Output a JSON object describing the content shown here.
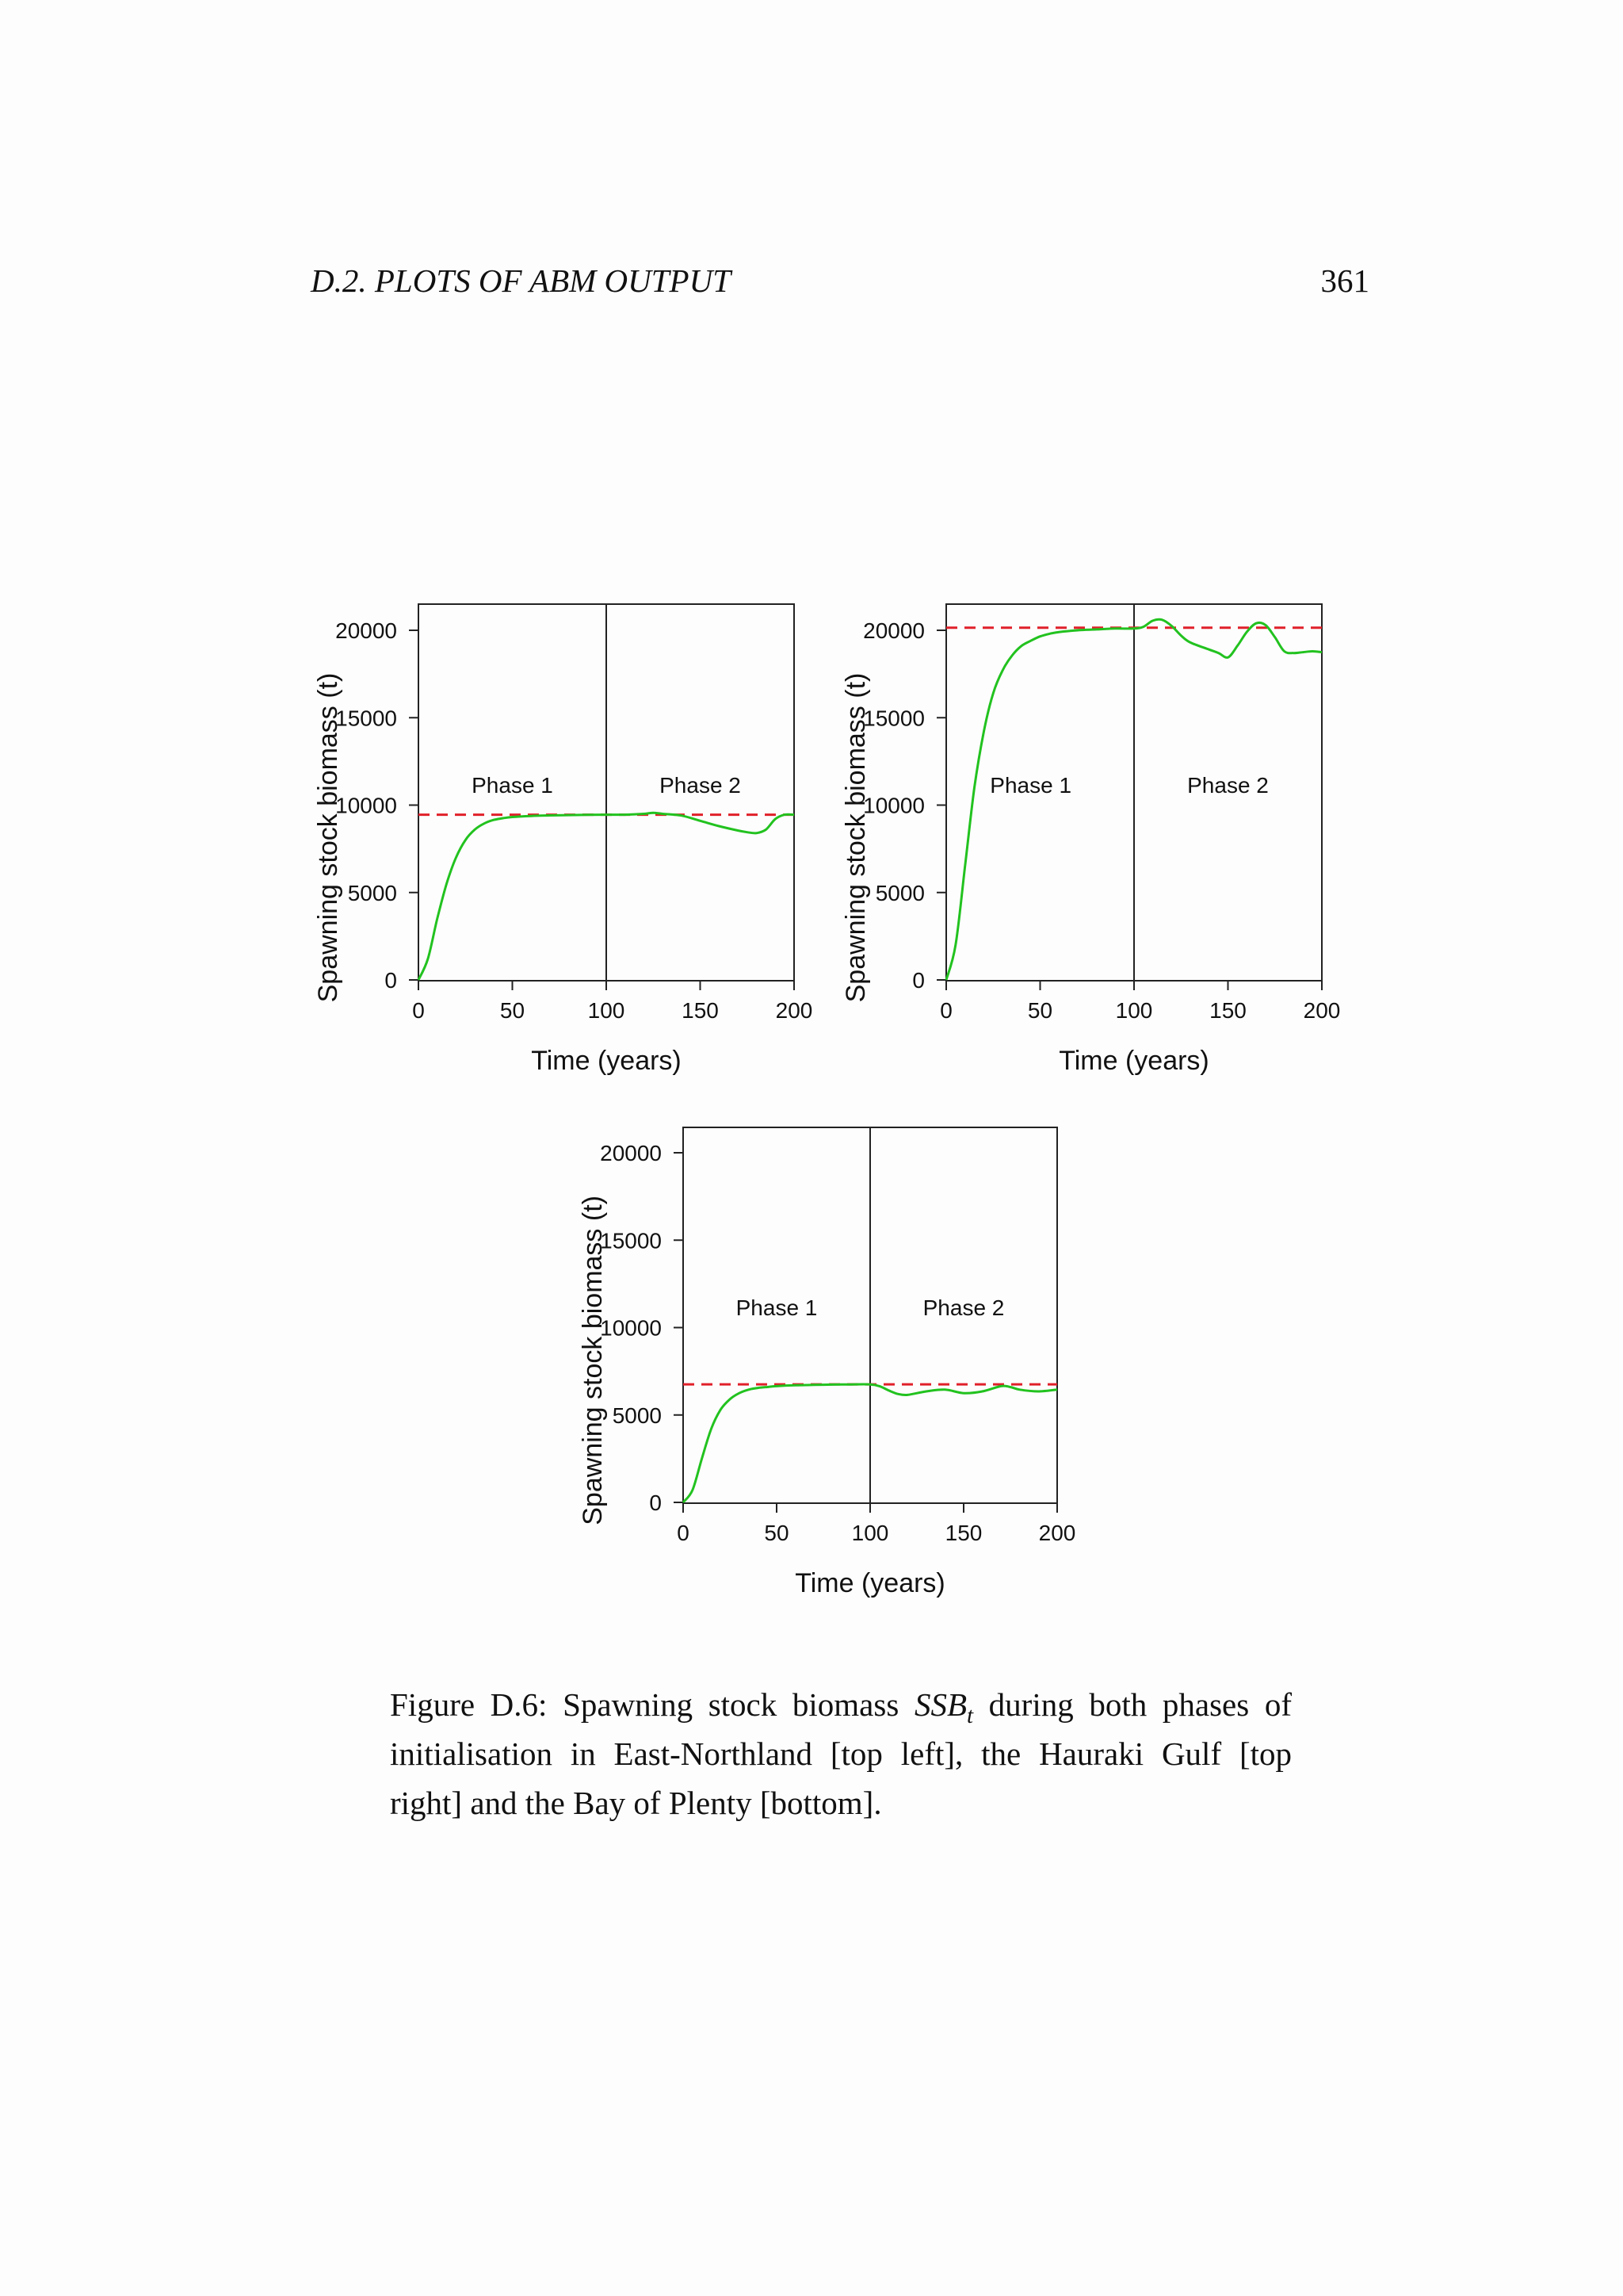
{
  "page": {
    "section": "D.2.  PLOTS OF ABM OUTPUT",
    "number": "361"
  },
  "caption": {
    "lead": "Figure D.6: Spawning stock biomass ",
    "symbol": "SSB",
    "subscript": "t",
    "rest": " during both phases of initialisation in East-Northland [top left], the Hauraki Gulf [top right] and the Bay of Plenty [bottom]."
  },
  "colors": {
    "curve": "#22c21f",
    "reference": "#e0202a",
    "axis": "#222222"
  },
  "chart_data": [
    {
      "type": "line",
      "title": "",
      "xlabel": "Time (years)",
      "ylabel": "Spawning stock biomass (t)",
      "xlim": [
        0,
        200
      ],
      "ylim": [
        0,
        20000
      ],
      "xticks": [
        0,
        50,
        100,
        150,
        200
      ],
      "xtick_labels": [
        "0",
        "50",
        "100",
        "150",
        "200"
      ],
      "yticks": [
        0,
        5000,
        10000,
        15000,
        20000
      ],
      "ytick_labels": [
        "0",
        "5000",
        "10000",
        "15000",
        "20000"
      ],
      "phase_divider_x": 100,
      "phase_labels": [
        {
          "text": "Phase 1",
          "x": 50,
          "y": 10700
        },
        {
          "text": "Phase 2",
          "x": 150,
          "y": 10700
        }
      ],
      "reference_level": 9450,
      "series": [
        {
          "x": [
            0,
            5,
            10,
            15,
            20,
            25,
            30,
            35,
            40,
            45,
            50,
            60,
            70,
            80,
            90,
            100,
            110,
            120,
            125,
            130,
            140,
            150,
            160,
            170,
            175,
            180,
            185,
            190,
            195,
            200
          ],
          "y": [
            0,
            1200,
            3500,
            5500,
            7000,
            8000,
            8600,
            8950,
            9150,
            9250,
            9320,
            9380,
            9410,
            9430,
            9440,
            9450,
            9450,
            9500,
            9560,
            9500,
            9400,
            9100,
            8800,
            8550,
            8450,
            8400,
            8600,
            9200,
            9450,
            9450
          ]
        }
      ]
    },
    {
      "type": "line",
      "title": "",
      "xlabel": "Time (years)",
      "ylabel": "Spawning stock biomass (t)",
      "xlim": [
        0,
        200
      ],
      "ylim": [
        0,
        20000
      ],
      "xticks": [
        0,
        50,
        100,
        150,
        200
      ],
      "xtick_labels": [
        "0",
        "50",
        "100",
        "150",
        "200"
      ],
      "yticks": [
        0,
        5000,
        10000,
        15000,
        20000
      ],
      "ytick_labels": [
        "0",
        "5000",
        "10000",
        "15000",
        "20000"
      ],
      "phase_divider_x": 100,
      "phase_labels": [
        {
          "text": "Phase 1",
          "x": 45,
          "y": 10700
        },
        {
          "text": "Phase 2",
          "x": 150,
          "y": 10700
        }
      ],
      "reference_level": 20150,
      "series": [
        {
          "x": [
            0,
            5,
            10,
            15,
            20,
            25,
            30,
            35,
            40,
            45,
            50,
            55,
            60,
            70,
            80,
            90,
            100,
            105,
            110,
            115,
            120,
            125,
            130,
            140,
            145,
            150,
            155,
            160,
            165,
            170,
            175,
            180,
            185,
            190,
            195,
            200
          ],
          "y": [
            0,
            2000,
            6500,
            11000,
            14200,
            16400,
            17700,
            18550,
            19100,
            19400,
            19650,
            19800,
            19900,
            20000,
            20050,
            20100,
            20100,
            20200,
            20550,
            20600,
            20250,
            19700,
            19300,
            18900,
            18700,
            18450,
            19100,
            19900,
            20400,
            20300,
            19600,
            18800,
            18700,
            18750,
            18800,
            18750
          ]
        }
      ]
    },
    {
      "type": "line",
      "title": "",
      "xlabel": "Time (years)",
      "ylabel": "Spawning stock biomass (t)",
      "xlim": [
        0,
        200
      ],
      "ylim": [
        0,
        20000
      ],
      "xticks": [
        0,
        50,
        100,
        150,
        200
      ],
      "xtick_labels": [
        "0",
        "50",
        "100",
        "150",
        "200"
      ],
      "yticks": [
        0,
        5000,
        10000,
        15000,
        20000
      ],
      "ytick_labels": [
        "0",
        "5000",
        "10000",
        "15000",
        "20000"
      ],
      "phase_divider_x": 100,
      "phase_labels": [
        {
          "text": "Phase 1",
          "x": 50,
          "y": 10700
        },
        {
          "text": "Phase 2",
          "x": 150,
          "y": 10700
        }
      ],
      "reference_level": 6750,
      "series": [
        {
          "x": [
            0,
            5,
            10,
            15,
            20,
            25,
            30,
            35,
            40,
            45,
            50,
            60,
            70,
            80,
            90,
            100,
            105,
            110,
            115,
            120,
            130,
            140,
            150,
            160,
            170,
            175,
            180,
            190,
            200
          ],
          "y": [
            0,
            700,
            2500,
            4200,
            5300,
            5900,
            6250,
            6450,
            6550,
            6600,
            6650,
            6700,
            6720,
            6740,
            6750,
            6750,
            6650,
            6400,
            6200,
            6150,
            6350,
            6450,
            6250,
            6350,
            6650,
            6600,
            6450,
            6350,
            6450
          ]
        }
      ]
    }
  ]
}
